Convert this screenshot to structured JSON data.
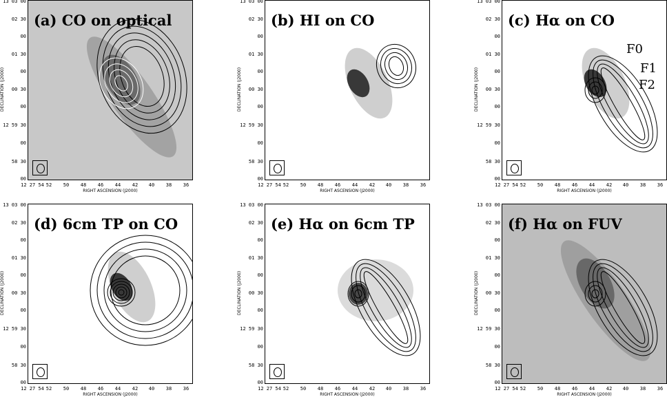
{
  "panels": [
    {
      "title": "(a) CO on optical"
    },
    {
      "title": "(b) HI on CO"
    },
    {
      "title": "(c) Hα on CO"
    },
    {
      "title": "(d) 6cm TP on CO"
    },
    {
      "title": "(e) Hα on 6cm TP"
    },
    {
      "title": "(f) Hα on FUV"
    }
  ],
  "axes": {
    "y_label": "DECLINATION (J2000)",
    "x_label": "RIGHT ASCENSION (J2000)",
    "y_ticks": [
      "13 03 00",
      "02 30",
      "00",
      "01 30",
      "00",
      "00 30",
      "00",
      "12 59 30",
      "00",
      "58 30",
      "00"
    ],
    "x_ticks": [
      "12 27 54",
      "52",
      "50",
      "48",
      "46",
      "44",
      "42",
      "40",
      "38",
      "36"
    ]
  },
  "features": {
    "f0": "F0",
    "f1": "F1",
    "f2": "F2"
  }
}
